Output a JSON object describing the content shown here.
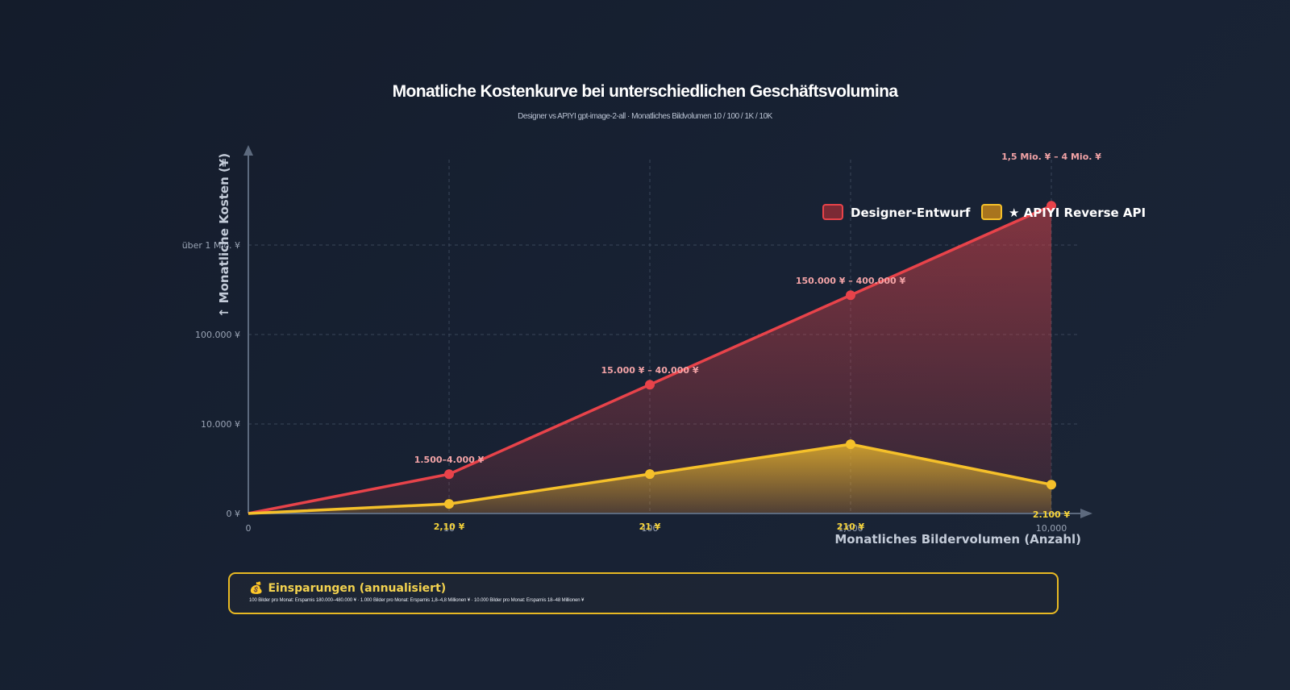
{
  "chart_data": {
    "type": "area",
    "title": "Monatliche Kostenkurve bei unterschiedlichen Geschäftsvolumina",
    "subtitle": "Designer vs APIYI gpt-image-2-all · Monatliches Bildvolumen 10 / 100 / 1K / 10K",
    "xlabel": "Monatliches Bildervolumen (Anzahl)",
    "ylabel": "↑ Monatliche Kosten (¥)",
    "x": [
      0,
      10,
      100,
      1000,
      10000
    ],
    "x_tick_labels": [
      "0",
      "10",
      "100",
      "1,000",
      "10,000"
    ],
    "y_tick_labels": [
      "0 ¥",
      "10.000 ¥",
      "100.000 ¥",
      "über 1 Mio. ¥"
    ],
    "y_scale": "log-like, evenly spaced decades",
    "grid": true,
    "legend_position": "top-right",
    "series": [
      {
        "name": "Designer-Entwurf",
        "color": "#e8434a",
        "values": [
          0,
          2750,
          27500,
          275000,
          2750000
        ],
        "point_labels": [
          "",
          "1.500–4.000 ¥",
          "15.000 ¥ – 40.000 ¥",
          "150.000 ¥ – 400.000 ¥",
          "1,5 Mio. ¥ – 4 Mio. ¥"
        ]
      },
      {
        "name": "★ APIYI Reverse API",
        "color": "#f5c02a",
        "values": [
          0,
          2.1,
          21,
          210,
          2100
        ],
        "point_labels": [
          "",
          "2,10 ¥",
          "21 ¥",
          "210 ¥",
          "2.100 ¥"
        ]
      }
    ]
  },
  "savings": {
    "icon": "money-bag-icon",
    "title": "Einsparungen (annualisiert)",
    "detail": "100 Bilder pro Monat: Ersparnis 180.000–480.000 ¥ · 1.000 Bilder pro Monat: Ersparnis 1,8–4,8 Millionen ¥ · 10.000 Bilder pro Monat: Ersparnis 18–48 Millionen ¥"
  }
}
